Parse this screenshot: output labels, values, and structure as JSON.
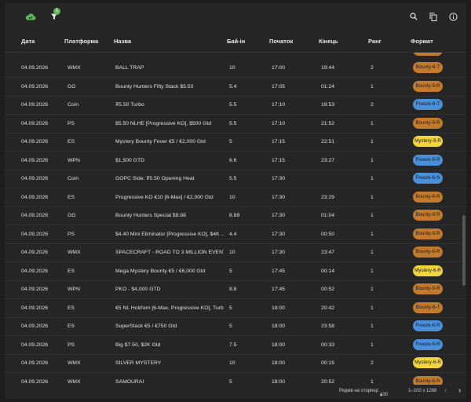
{
  "toolbar": {
    "filter_badge": "1"
  },
  "columns": {
    "date": "Дата",
    "platform": "Платформа",
    "name": "Назва",
    "buyin": "Бай-ін",
    "start": "Початок",
    "end": "Кінець",
    "rank": "Ранг",
    "format": "Формат"
  },
  "rows": [
    {
      "date": "04.09.2026",
      "platform": "WMX",
      "name": "BALL TRAP",
      "buyin": "10",
      "start": "17:00",
      "end": "19:44",
      "rank": "2",
      "format": "Bounty-6-T",
      "format_color": "#c47a2c"
    },
    {
      "date": "04.09.2026",
      "platform": "GG",
      "name": "Bounty Hunters Fifty Stack $5.50",
      "buyin": "5.4",
      "start": "17:05",
      "end": "01:24",
      "rank": "1",
      "format": "Bounty-9-R",
      "format_color": "#c47a2c"
    },
    {
      "date": "04.09.2026",
      "platform": "Coin",
      "name": "₮5.50 Turbo",
      "buyin": "5.5",
      "start": "17:10",
      "end": "19:53",
      "rank": "2",
      "format": "Freeze-6-T",
      "format_color": "#4a90d9"
    },
    {
      "date": "04.09.2026",
      "platform": "PS",
      "name": "$5.50 NLHE [Progressive KO], $500 Gtd",
      "buyin": "5.5",
      "start": "17:10",
      "end": "21:52",
      "rank": "1",
      "format": "Bounty-9-R",
      "format_color": "#c47a2c"
    },
    {
      "date": "04.09.2026",
      "platform": "ES",
      "name": "Mystery Bounty Fever €5 / €2,000 Gtd",
      "buyin": "5",
      "start": "17:15",
      "end": "22:51",
      "rank": "1",
      "format": "Mystery-9-R",
      "format_color": "#f2d43d"
    },
    {
      "date": "04.09.2026",
      "platform": "WPN",
      "name": "$1,500 GTD",
      "buyin": "6.6",
      "start": "17:15",
      "end": "23:27",
      "rank": "1",
      "format": "Freeze-9-R",
      "format_color": "#4a90d9"
    },
    {
      "date": "04.09.2026",
      "platform": "Coin",
      "name": "GOPC Side: ₮5.50 Opening Heat",
      "buyin": "5.5",
      "start": "17:30",
      "end": "",
      "rank": "1",
      "format": "Freeze-6-N",
      "format_color": "#4a90d9"
    },
    {
      "date": "04.09.2026",
      "platform": "ES",
      "name": "Progressive KO €10 [6-Max] / €2,000 Gtd",
      "buyin": "10",
      "start": "17:30",
      "end": "23:29",
      "rank": "1",
      "format": "Bounty-6-R",
      "format_color": "#c47a2c"
    },
    {
      "date": "04.09.2026",
      "platform": "GG",
      "name": "Bounty Hunters Special $8.88",
      "buyin": "8.88",
      "start": "17:30",
      "end": "01:04",
      "rank": "1",
      "format": "Bounty-9-R",
      "format_color": "#c47a2c"
    },
    {
      "date": "04.09.2026",
      "platform": "PS",
      "name": "$4.40 Mini Eliminator [Progressive KO], $4K ...",
      "buyin": "4.4",
      "start": "17:30",
      "end": "00:50",
      "rank": "1",
      "format": "Bounty-9-R",
      "format_color": "#c47a2c"
    },
    {
      "date": "04.09.2026",
      "platform": "WMX",
      "name": "SPACECRAFT - ROAD TO 3 MILLION EVENT",
      "buyin": "10",
      "start": "17:30",
      "end": "23:47",
      "rank": "1",
      "format": "Bounty-6-R",
      "format_color": "#c47a2c"
    },
    {
      "date": "04.09.2026",
      "platform": "ES",
      "name": "Mega Mystery Bounty €5 / €6,000 Gtd",
      "buyin": "5",
      "start": "17:45",
      "end": "00:14",
      "rank": "1",
      "format": "Mystery-6-R",
      "format_color": "#f2d43d"
    },
    {
      "date": "04.09.2026",
      "platform": "WPN",
      "name": "PKO - $4,000 GTD",
      "buyin": "8.8",
      "start": "17:45",
      "end": "00:52",
      "rank": "1",
      "format": "Bounty-9-R",
      "format_color": "#c47a2c"
    },
    {
      "date": "04.09.2026",
      "platform": "ES",
      "name": "€5 NL Hold'em [6-Max, Progressive KO], Turb...",
      "buyin": "5",
      "start": "18:00",
      "end": "20:42",
      "rank": "1",
      "format": "Bounty-6-T",
      "format_color": "#c47a2c"
    },
    {
      "date": "04.09.2026",
      "platform": "ES",
      "name": "SuperStack €5 / €750 Gtd",
      "buyin": "5",
      "start": "18:00",
      "end": "23:58",
      "rank": "1",
      "format": "Freeze-6-R",
      "format_color": "#4a90d9"
    },
    {
      "date": "04.09.2026",
      "platform": "PS",
      "name": "Big $7.50, $2K Gtd",
      "buyin": "7.5",
      "start": "18:00",
      "end": "00:33",
      "rank": "1",
      "format": "Freeze-9-R",
      "format_color": "#4a90d9"
    },
    {
      "date": "04.09.2026",
      "platform": "WMX",
      "name": "SILVER MYSTERY",
      "buyin": "10",
      "start": "18:00",
      "end": "00:15",
      "rank": "2",
      "format": "Mystery-6-R",
      "format_color": "#f2d43d"
    },
    {
      "date": "04.09.2026",
      "platform": "WMX",
      "name": "SAMOURAI",
      "buyin": "5",
      "start": "18:00",
      "end": "20:52",
      "rank": "1",
      "format": "Bounty-6-R",
      "format_color": "#c47a2c"
    }
  ],
  "footer": {
    "rows_per_page_label": "Рядків на сторінці:",
    "rows_per_page_value": "100",
    "range": "1–100 з 1268"
  },
  "colors": {
    "bounty": "#c47a2c",
    "freeze": "#4a90d9",
    "mystery": "#f2d43d",
    "cloud": "#5cb85c"
  }
}
